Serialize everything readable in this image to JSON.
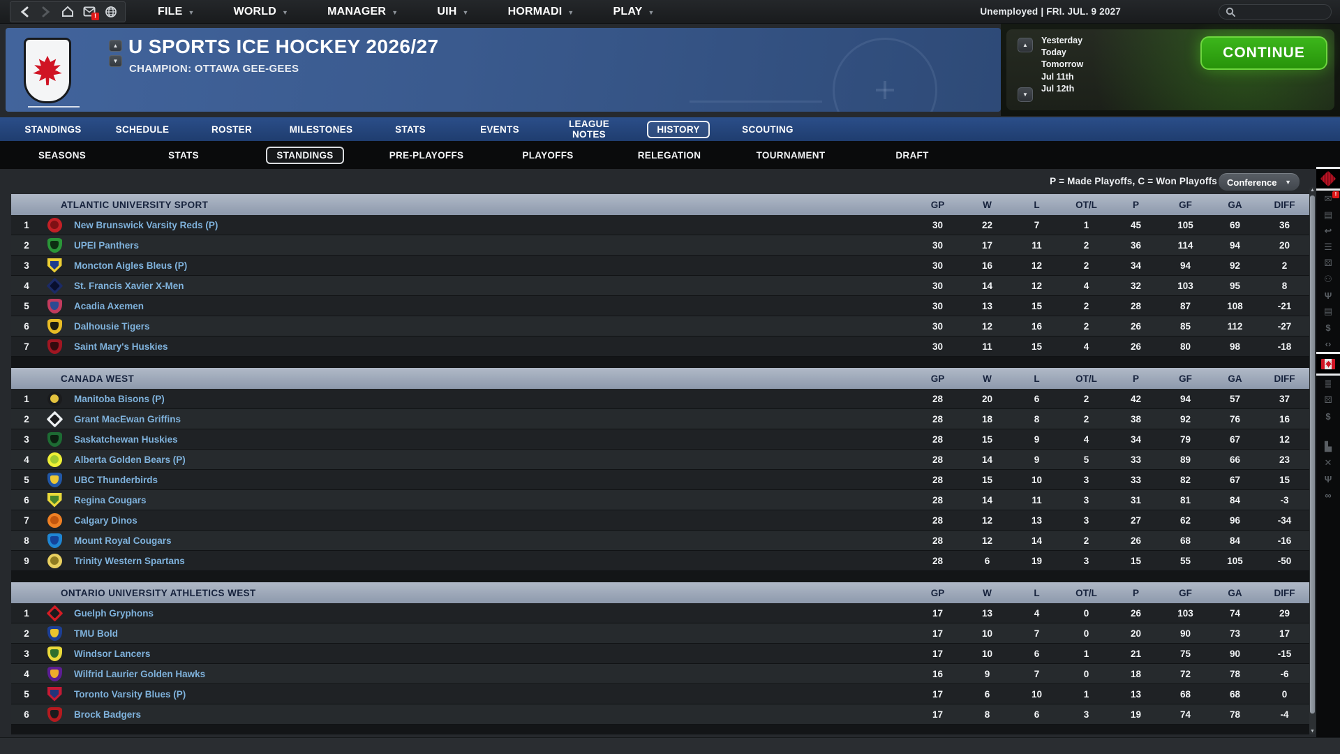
{
  "top_bar": {
    "nav_icons": [
      "back-icon",
      "forward-icon",
      "home-icon",
      "inbox-icon",
      "globe-icon"
    ],
    "inbox_badge": "!",
    "menus": [
      "FILE",
      "WORLD",
      "MANAGER",
      "UIH",
      "HORMADI",
      "PLAY"
    ],
    "status": "Unemployed | FRI. JUL. 9 2027"
  },
  "header": {
    "title": "U SPORTS ICE HOCKEY 2026/27",
    "subtitle": "CHAMPION: OTTAWA GEE-GEES",
    "dates": [
      "Yesterday",
      "Today",
      "Tomorrow",
      "Jul 11th",
      "Jul 12th"
    ],
    "continue_label": "CONTINUE"
  },
  "tabs": {
    "items": [
      "STANDINGS",
      "SCHEDULE",
      "ROSTER",
      "MILESTONES",
      "STATS",
      "EVENTS",
      "LEAGUE NOTES",
      "HISTORY",
      "SCOUTING"
    ],
    "selected_index": 7
  },
  "subtabs": {
    "items": [
      "SEASONS",
      "STATS",
      "STANDINGS",
      "PRE-PLAYOFFS",
      "PLAYOFFS",
      "RELEGATION",
      "TOURNAMENT",
      "DRAFT"
    ],
    "selected_index": 2
  },
  "legend": "P = Made Playoffs,  C = Won Playoffs",
  "filter": {
    "label": "Conference"
  },
  "columns": [
    "GP",
    "W",
    "L",
    "OT/L",
    "P",
    "GF",
    "GA",
    "DIFF"
  ],
  "sections": [
    {
      "name": "ATLANTIC UNIVERSITY SPORT",
      "teams": [
        {
          "rank": 1,
          "name": "New Brunswick Varsity Reds (P)",
          "logo": {
            "shape": "circle",
            "c1": "#c32026",
            "c2": "#7e1014"
          },
          "stats": [
            30,
            22,
            7,
            1,
            45,
            105,
            69,
            36
          ]
        },
        {
          "rank": 2,
          "name": "UPEI Panthers",
          "logo": {
            "shape": "shield",
            "c1": "#2a9638",
            "c2": "#0d2e12"
          },
          "stats": [
            30,
            17,
            11,
            2,
            36,
            114,
            94,
            20
          ]
        },
        {
          "rank": 3,
          "name": "Moncton Aigles Bleus (P)",
          "logo": {
            "shape": "point",
            "c1": "#eccf35",
            "c2": "#1d3c8f"
          },
          "stats": [
            30,
            16,
            12,
            2,
            34,
            94,
            92,
            2
          ]
        },
        {
          "rank": 4,
          "name": "St. Francis Xavier X-Men",
          "logo": {
            "shape": "diamond",
            "c1": "#1b2a66",
            "c2": "#090f2e"
          },
          "stats": [
            30,
            14,
            12,
            4,
            32,
            103,
            95,
            8
          ]
        },
        {
          "rank": 5,
          "name": "Acadia Axemen",
          "logo": {
            "shape": "shield",
            "c1": "#c23b5e",
            "c2": "#2c4a92"
          },
          "stats": [
            30,
            13,
            15,
            2,
            28,
            87,
            108,
            -21
          ]
        },
        {
          "rank": 6,
          "name": "Dalhousie Tigers",
          "logo": {
            "shape": "shield",
            "c1": "#e9bc25",
            "c2": "#1c1c12"
          },
          "stats": [
            30,
            12,
            16,
            2,
            26,
            85,
            112,
            -27
          ]
        },
        {
          "rank": 7,
          "name": "Saint Mary's Huskies",
          "logo": {
            "shape": "shield",
            "c1": "#a01622",
            "c2": "#330a0e"
          },
          "stats": [
            30,
            11,
            15,
            4,
            26,
            80,
            98,
            -18
          ]
        }
      ]
    },
    {
      "name": "CANADA WEST",
      "teams": [
        {
          "rank": 1,
          "name": "Manitoba Bisons (P)",
          "logo": {
            "shape": "circle",
            "c1": "#1a1b1d",
            "c2": "#e3c23e"
          },
          "stats": [
            28,
            20,
            6,
            2,
            42,
            94,
            57,
            37
          ]
        },
        {
          "rank": 2,
          "name": "Grant MacEwan Griffins",
          "logo": {
            "shape": "diamond",
            "c1": "#eceff1",
            "c2": "#1a1b1d"
          },
          "stats": [
            28,
            18,
            8,
            2,
            38,
            92,
            76,
            16
          ]
        },
        {
          "rank": 3,
          "name": "Saskatchewan Huskies",
          "logo": {
            "shape": "shield",
            "c1": "#1d6b33",
            "c2": "#0b1f10"
          },
          "stats": [
            28,
            15,
            9,
            4,
            34,
            79,
            67,
            12
          ]
        },
        {
          "rank": 4,
          "name": "Alberta Golden Bears (P)",
          "logo": {
            "shape": "circle",
            "c1": "#eef036",
            "c2": "#9fca2f"
          },
          "stats": [
            28,
            14,
            9,
            5,
            33,
            89,
            66,
            23
          ]
        },
        {
          "rank": 5,
          "name": "UBC Thunderbirds",
          "logo": {
            "shape": "shield",
            "c1": "#2257a5",
            "c2": "#ecc735"
          },
          "stats": [
            28,
            15,
            10,
            3,
            33,
            82,
            67,
            15
          ]
        },
        {
          "rank": 6,
          "name": "Regina Cougars",
          "logo": {
            "shape": "point",
            "c1": "#e9d93a",
            "c2": "#47852c"
          },
          "stats": [
            28,
            14,
            11,
            3,
            31,
            81,
            84,
            -3
          ]
        },
        {
          "rank": 7,
          "name": "Calgary Dinos",
          "logo": {
            "shape": "circle",
            "c1": "#ef8024",
            "c2": "#c2560e"
          },
          "stats": [
            28,
            12,
            13,
            3,
            27,
            62,
            96,
            -34
          ]
        },
        {
          "rank": 8,
          "name": "Mount Royal Cougars",
          "logo": {
            "shape": "shield",
            "c1": "#1f86d4",
            "c2": "#14439a"
          },
          "stats": [
            28,
            12,
            14,
            2,
            26,
            68,
            84,
            -16
          ]
        },
        {
          "rank": 9,
          "name": "Trinity Western Spartans",
          "logo": {
            "shape": "circle",
            "c1": "#e9d060",
            "c2": "#8f7c22"
          },
          "stats": [
            28,
            6,
            19,
            3,
            15,
            55,
            105,
            -50
          ]
        }
      ]
    },
    {
      "name": "ONTARIO UNIVERSITY ATHLETICS WEST",
      "teams": [
        {
          "rank": 1,
          "name": "Guelph Gryphons",
          "logo": {
            "shape": "diamond",
            "c1": "#d41c24",
            "c2": "#1a1b1d"
          },
          "stats": [
            17,
            13,
            4,
            0,
            26,
            103,
            74,
            29
          ]
        },
        {
          "rank": 2,
          "name": "TMU Bold",
          "logo": {
            "shape": "shield",
            "c1": "#1d3f94",
            "c2": "#ecc52c"
          },
          "stats": [
            17,
            10,
            7,
            0,
            20,
            90,
            73,
            17
          ]
        },
        {
          "rank": 3,
          "name": "Windsor Lancers",
          "logo": {
            "shape": "shield",
            "c1": "#e9d93a",
            "c2": "#2d6e2d"
          },
          "stats": [
            17,
            10,
            6,
            1,
            21,
            75,
            90,
            -15
          ]
        },
        {
          "rank": 4,
          "name": "Wilfrid Laurier Golden Hawks",
          "logo": {
            "shape": "shield",
            "c1": "#5d1e94",
            "c2": "#eead2b"
          },
          "stats": [
            16,
            9,
            7,
            0,
            18,
            72,
            78,
            -6
          ]
        },
        {
          "rank": 5,
          "name": "Toronto Varsity Blues (P)",
          "logo": {
            "shape": "point",
            "c1": "#c41a35",
            "c2": "#22357c"
          },
          "stats": [
            17,
            6,
            10,
            1,
            13,
            68,
            68,
            0
          ]
        },
        {
          "rank": 6,
          "name": "Brock Badgers",
          "logo": {
            "shape": "shield",
            "c1": "#b51a1f",
            "c2": "#1a1b1d"
          },
          "stats": [
            17,
            8,
            6,
            3,
            19,
            74,
            78,
            -4
          ]
        }
      ]
    }
  ],
  "sidebar": {
    "icons": [
      {
        "name": "league-logo-icon",
        "type": "league",
        "selected": true
      },
      {
        "name": "inbox-icon",
        "glyph": "✉",
        "badge": "!"
      },
      {
        "name": "cards-icon",
        "glyph": "▤"
      },
      {
        "name": "return-arrow-icon",
        "glyph": "↩"
      },
      {
        "name": "menu-lines-icon",
        "glyph": "☰"
      },
      {
        "name": "dice-icon",
        "glyph": "⚄"
      },
      {
        "name": "staff-icon",
        "glyph": "⚇"
      },
      {
        "name": "trophy-icon",
        "glyph": "Ψ"
      },
      {
        "name": "notes-icon",
        "glyph": "▤"
      },
      {
        "name": "contracts-icon",
        "glyph": "$"
      },
      {
        "name": "code-icon",
        "glyph": "‹›"
      },
      {
        "name": "canada-flag-icon",
        "type": "flag",
        "selected": true
      },
      {
        "name": "list-icon",
        "glyph": "≣"
      },
      {
        "name": "dice2-icon",
        "glyph": "⚄"
      },
      {
        "name": "finance-icon",
        "glyph": "$"
      },
      {
        "name": "chart-bars-icon",
        "glyph": "▙",
        "gap": true
      },
      {
        "name": "close-icon",
        "glyph": "✕"
      },
      {
        "name": "trophy2-icon",
        "glyph": "Ψ"
      },
      {
        "name": "binoculars-icon",
        "glyph": "∞"
      }
    ]
  },
  "colors": {
    "continue_green": "#2fa412",
    "tab_blue": "#24477e",
    "team_link_blue": "#7fb2dc",
    "section_header_bg": "#98a3b4",
    "alert_red": "#e01818"
  }
}
